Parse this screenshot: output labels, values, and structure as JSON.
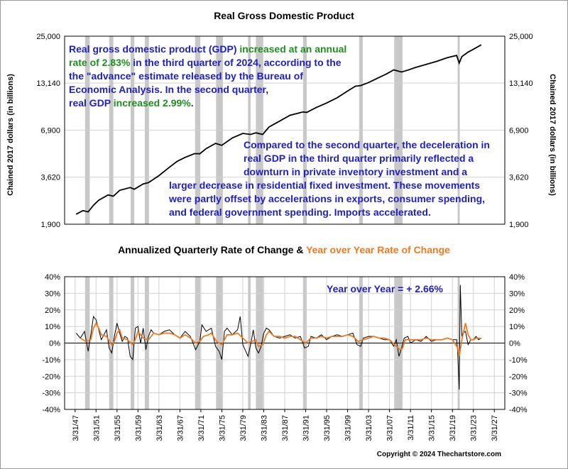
{
  "chart_data": [
    {
      "type": "line",
      "title": "Real Gross Domestic Product",
      "ylabel_left": "Chained 2017 dollars (in billions)",
      "ylabel_right": "Chained 2017 dollars (in billions)",
      "yscale": "log",
      "ylim": [
        1900,
        25000
      ],
      "yticks": [
        "25,000",
        "13,140",
        "6,900",
        "3,620",
        "1,900"
      ],
      "ytick_values": [
        25000,
        13140,
        6900,
        3620,
        1900
      ],
      "xlim": [
        1945,
        2029
      ],
      "series": [
        {
          "values_note": "",
          "x": [
            1947.2,
            1948.5,
            1949.5,
            1950.5,
            1951.5,
            1953.3,
            1954.3,
            1955.5,
            1957.5,
            1958.3,
            1960.0,
            1961.0,
            1963.0,
            1965.0,
            1966.5,
            1968.0,
            1969.8,
            1970.8,
            1972.0,
            1973.8,
            1975.0,
            1977.0,
            1979.0,
            1980.5,
            1981.5,
            1982.8,
            1984.0,
            1986.0,
            1988.0,
            1990.5,
            1991.2,
            1993.0,
            1995.0,
            1997.0,
            1999.0,
            2000.5,
            2001.5,
            2003.0,
            2005.0,
            2006.5,
            2007.8,
            2009.3,
            2010.5,
            2012.0,
            2014.0,
            2016.0,
            2018.0,
            2019.8,
            2020.3,
            2020.8,
            2022.0,
            2023.0,
            2024.5
          ],
          "y": [
            2180,
            2290,
            2250,
            2460,
            2640,
            2840,
            2790,
            3020,
            3140,
            3070,
            3300,
            3360,
            3700,
            4150,
            4500,
            4750,
            5000,
            4990,
            5350,
            5750,
            5600,
            6200,
            6600,
            6500,
            6650,
            6500,
            7200,
            7800,
            8450,
            8850,
            8800,
            9400,
            10000,
            10750,
            11800,
            12600,
            12700,
            13250,
            14200,
            14950,
            15750,
            15300,
            15700,
            16300,
            17000,
            17700,
            18600,
            19200,
            17300,
            18900,
            20100,
            20900,
            22200
          ],
          "color": "#000000"
        }
      ],
      "recessions": [
        [
          1948.9,
          1949.8
        ],
        [
          1953.5,
          1954.3
        ],
        [
          1957.6,
          1958.3
        ],
        [
          1960.3,
          1961.1
        ],
        [
          1969.9,
          1970.9
        ],
        [
          1973.9,
          1975.2
        ],
        [
          1980.0,
          1980.5
        ],
        [
          1981.5,
          1982.9
        ],
        [
          1990.5,
          1991.2
        ],
        [
          2001.2,
          2001.9
        ],
        [
          2007.9,
          2009.5
        ],
        [
          2020.0,
          2020.4
        ]
      ],
      "grid": true
    },
    {
      "type": "line",
      "title_parts": [
        "Annualized Quarterly Rate of Change & ",
        "Year over Year Rate of Change"
      ],
      "title_colors": [
        "#000000",
        "#ee7a1e"
      ],
      "ylim": [
        -40,
        40
      ],
      "yticks": [
        "40%",
        "30%",
        "20%",
        "10%",
        "0%",
        "-10%",
        "-20%",
        "-30%",
        "-40%"
      ],
      "ytick_values": [
        40,
        30,
        20,
        10,
        0,
        -10,
        -20,
        -30,
        -40
      ],
      "xlim": [
        1945,
        2029
      ],
      "xticks": [
        "3/31/47",
        "3/31/51",
        "3/31/55",
        "3/31/59",
        "3/31/63",
        "3/31/67",
        "3/31/71",
        "3/31/75",
        "3/31/79",
        "3/31/83",
        "3/31/87",
        "3/31/91",
        "3/31/95",
        "3/31/99",
        "3/31/03",
        "3/31/07",
        "3/31/11",
        "3/31/15",
        "3/31/19",
        "3/31/23",
        "3/31/27"
      ],
      "xtick_values": [
        1947,
        1951,
        1955,
        1959,
        1963,
        1967,
        1971,
        1975,
        1979,
        1983,
        1987,
        1991,
        1995,
        1999,
        2003,
        2007,
        2011,
        2015,
        2019,
        2023,
        2027
      ],
      "series": [
        {
          "name": "Annualized Quarterly Rate of Change",
          "color": "#000000",
          "x": [
            1947.2,
            1948.0,
            1948.8,
            1949.5,
            1950.0,
            1950.5,
            1951.0,
            1951.5,
            1952.0,
            1952.5,
            1953.0,
            1953.5,
            1954.0,
            1954.5,
            1955.0,
            1955.5,
            1956.0,
            1956.5,
            1957.0,
            1957.5,
            1958.0,
            1958.5,
            1959.0,
            1959.5,
            1960.0,
            1960.5,
            1961.0,
            1961.5,
            1962.0,
            1963.0,
            1964.0,
            1965.0,
            1966.0,
            1967.0,
            1968.0,
            1969.0,
            1970.0,
            1970.8,
            1971.2,
            1972.0,
            1973.0,
            1973.8,
            1974.5,
            1975.0,
            1975.5,
            1976.0,
            1977.0,
            1978.0,
            1978.5,
            1979.0,
            1980.0,
            1980.5,
            1981.0,
            1981.5,
            1982.0,
            1982.5,
            1983.0,
            1983.5,
            1984.0,
            1985.0,
            1986.0,
            1987.0,
            1988.0,
            1989.0,
            1990.0,
            1990.8,
            1991.5,
            1992.0,
            1993.0,
            1994.0,
            1995.0,
            1996.0,
            1997.0,
            1998.0,
            1999.0,
            2000.0,
            2000.8,
            2001.5,
            2002.0,
            2003.0,
            2004.0,
            2005.0,
            2006.0,
            2007.0,
            2007.8,
            2008.3,
            2008.8,
            2009.2,
            2009.8,
            2010.5,
            2011.0,
            2012.0,
            2013.0,
            2014.0,
            2015.0,
            2016.0,
            2017.0,
            2018.0,
            2019.0,
            2019.8,
            2020.0,
            2020.3,
            2020.5,
            2020.8,
            2021.0,
            2021.5,
            2022.0,
            2022.5,
            2023.0,
            2023.5,
            2024.0,
            2024.5
          ],
          "y": [
            6,
            3,
            7,
            -5,
            5,
            16,
            14,
            8,
            2,
            5,
            8,
            -3,
            -6,
            4,
            12,
            6,
            1,
            4,
            3,
            -8,
            -10,
            9,
            10,
            0,
            9,
            -4,
            4,
            8,
            6,
            5,
            7,
            8,
            5,
            3,
            7,
            4,
            -4,
            1,
            11,
            7,
            9,
            -2,
            -5,
            -10,
            7,
            9,
            5,
            8,
            16,
            -1,
            -8,
            -1,
            8,
            -3,
            -6,
            -2,
            6,
            9,
            8,
            4,
            3,
            4,
            5,
            3,
            4,
            -3,
            -2,
            4,
            3,
            5,
            2,
            4,
            5,
            4,
            5,
            6,
            -1,
            -2,
            3,
            4,
            4,
            3,
            2,
            2,
            -2,
            2,
            -8,
            -4,
            3,
            4,
            0,
            2,
            1,
            4,
            1,
            2,
            2,
            3,
            2,
            2,
            -5,
            -28,
            35,
            4,
            6,
            7,
            -1,
            2,
            2,
            4,
            2,
            3
          ],
          "values_note": ""
        },
        {
          "name": "Year over Year Rate of Change",
          "color": "#ee7a1e",
          "x": [
            1948.0,
            1949.0,
            1950.0,
            1950.5,
            1951.0,
            1951.5,
            1952.0,
            1953.0,
            1954.0,
            1954.5,
            1955.0,
            1955.5,
            1956.0,
            1957.0,
            1958.0,
            1958.5,
            1959.0,
            1960.0,
            1961.0,
            1962.0,
            1963.0,
            1964.0,
            1965.0,
            1966.0,
            1967.0,
            1968.0,
            1969.0,
            1970.0,
            1970.8,
            1971.5,
            1972.5,
            1973.0,
            1974.0,
            1975.0,
            1975.5,
            1976.0,
            1977.0,
            1978.0,
            1979.0,
            1980.0,
            1980.8,
            1981.5,
            1982.0,
            1982.8,
            1983.5,
            1984.0,
            1985.0,
            1986.0,
            1987.0,
            1988.0,
            1989.0,
            1990.0,
            1991.0,
            1992.0,
            1993.0,
            1994.0,
            1995.0,
            1996.0,
            1997.0,
            1998.0,
            1999.0,
            2000.0,
            2001.0,
            2002.0,
            2003.0,
            2004.0,
            2005.0,
            2006.0,
            2007.0,
            2008.0,
            2009.0,
            2009.5,
            2010.0,
            2011.0,
            2012.0,
            2013.0,
            2014.0,
            2015.0,
            2016.0,
            2017.0,
            2018.0,
            2019.0,
            2020.0,
            2020.3,
            2020.8,
            2021.0,
            2021.5,
            2022.0,
            2022.5,
            2023.0,
            2023.5,
            2024.0,
            2024.5
          ],
          "y": [
            3,
            1,
            2,
            9,
            12,
            9,
            5,
            4,
            -1,
            1,
            6,
            8,
            3,
            2,
            -1,
            2,
            7,
            3,
            2,
            6,
            5,
            6,
            6,
            5,
            3,
            5,
            3,
            0,
            1,
            4,
            5,
            6,
            1,
            -1,
            2,
            5,
            5,
            6,
            3,
            0,
            1,
            2,
            -2,
            -1,
            5,
            7,
            4,
            4,
            3,
            4,
            4,
            2,
            0,
            3,
            3,
            4,
            3,
            4,
            4,
            4,
            5,
            4,
            1,
            2,
            3,
            4,
            3,
            3,
            2,
            -1,
            -4,
            -3,
            2,
            2,
            2,
            2,
            3,
            2,
            2,
            2,
            3,
            2,
            -3,
            -8,
            2,
            5,
            12,
            5,
            2,
            2,
            3,
            3,
            2.7
          ],
          "values_note": ""
        }
      ],
      "recessions": [
        [
          1948.9,
          1949.8
        ],
        [
          1953.5,
          1954.3
        ],
        [
          1957.6,
          1958.3
        ],
        [
          1960.3,
          1961.1
        ],
        [
          1969.9,
          1970.9
        ],
        [
          1973.9,
          1975.2
        ],
        [
          1980.0,
          1980.5
        ],
        [
          1981.5,
          1982.9
        ],
        [
          1990.5,
          1991.2
        ],
        [
          2001.2,
          2001.9
        ],
        [
          2007.9,
          2009.5
        ],
        [
          2020.0,
          2020.4
        ]
      ],
      "grid": true
    }
  ],
  "annotations": {
    "top_note_lines": [
      [
        {
          "t": "Real gross domestic product (GDP) ",
          "c": "blue"
        },
        {
          "t": "increased at an annual",
          "c": "green"
        }
      ],
      [
        {
          "t": "rate of 2.83%",
          "c": "green"
        },
        {
          "t": " in the third quarter of 2024, according to the",
          "c": "blue"
        }
      ],
      [
        {
          "t": "the \"advance\" estimate released by the Bureau of",
          "c": "blue"
        }
      ],
      [
        {
          "t": "Economic Analysis. In the second quarter,",
          "c": "blue"
        }
      ],
      [
        {
          "t": "real GDP ",
          "c": "blue"
        },
        {
          "t": "increased 2.99%",
          "c": "green"
        },
        {
          "t": ".",
          "c": "blue"
        }
      ]
    ],
    "mid_note_lines": [
      "Compared to the second quarter, the deceleration in",
      "real GDP in the third quarter primarily reflected a",
      "downturn in private inventory investment and a",
      "larger decrease in residential fixed investment. These movements",
      "were partly offset by accelerations in exports, consumer spending,",
      "and federal government spending. Imports accelerated."
    ],
    "yoy_label": "Year over Year = + 2.66%",
    "copyright": "Copyright © 2024 Thechartstore.com"
  },
  "colors": {
    "blue": "#1f1fbf",
    "green": "#1e8f1e",
    "orange": "#ee7a1e",
    "recession": "#c8c8c8",
    "grid": "#d0d0d0"
  }
}
